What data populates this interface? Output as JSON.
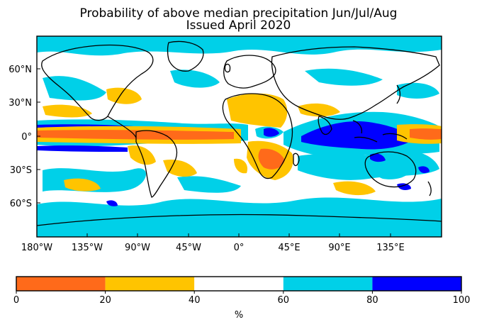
{
  "title": "Probability of above median precipitation Jun/Jul/Aug",
  "subtitle": "Issued April 2020",
  "colorbar": {
    "label": "%",
    "ticks": [
      "0",
      "20",
      "40",
      "60",
      "80",
      "100"
    ],
    "bins": [
      {
        "from": 0,
        "to": 20,
        "color": "#ff6a1a"
      },
      {
        "from": 20,
        "to": 40,
        "color": "#ffc400"
      },
      {
        "from": 40,
        "to": 60,
        "color": "#ffffff"
      },
      {
        "from": 60,
        "to": 80,
        "color": "#00d0e8"
      },
      {
        "from": 80,
        "to": 100,
        "color": "#0000ff"
      }
    ]
  },
  "axes": {
    "lon_ticks": [
      "180°W",
      "135°W",
      "90°W",
      "45°W",
      "0°",
      "45°E",
      "90°E",
      "135°E"
    ],
    "lat_ticks": [
      "60°N",
      "30°N",
      "0°",
      "30°S",
      "60°S"
    ]
  }
}
